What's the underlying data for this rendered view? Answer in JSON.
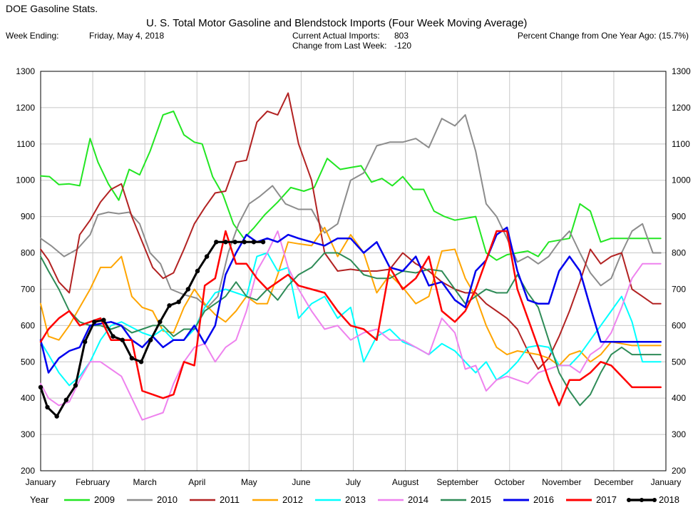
{
  "header": {
    "app_title": "DOE Gasoline Stats.",
    "chart_title": "U. S. Total Motor Gasoline and Blendstock Imports (Four Week Moving Average)",
    "week_ending_label": "Week Ending:",
    "week_ending_value": "Friday, May 4, 2018",
    "current_label": "Current Actual Imports:",
    "current_value": "803",
    "change_label": "Change from Last Week:",
    "change_value": "-120",
    "pct_label": "Percent Change from One Year Ago: (15.7%)"
  },
  "chart_data": {
    "type": "line",
    "title": "U. S. Total Motor Gasoline and Blendstock Imports (Four Week Moving Average)",
    "xlabel": "",
    "ylabel": "",
    "x_unit": "month (0 = start of January, 12 = start of next January)",
    "xlim": [
      0,
      12
    ],
    "ylim": [
      200,
      1300
    ],
    "y_ticks": [
      200,
      300,
      400,
      500,
      600,
      700,
      800,
      900,
      1000,
      1100,
      1200,
      1300
    ],
    "month_labels": [
      "January",
      "February",
      "March",
      "April",
      "May",
      "June",
      "July",
      "August",
      "September",
      "October",
      "November",
      "December",
      "January"
    ],
    "grid": true,
    "legend_title": "Year",
    "legend_position": "bottom",
    "series": [
      {
        "name": "2009",
        "color": "#22e622",
        "width": 2,
        "x": [
          0,
          0.17,
          0.35,
          0.55,
          0.75,
          0.95,
          1.1,
          1.3,
          1.5,
          1.7,
          1.9,
          2.1,
          2.35,
          2.55,
          2.75,
          2.95,
          3.1,
          3.3,
          3.5,
          3.7,
          3.9,
          4.1,
          4.3,
          4.55,
          4.8,
          5.05,
          5.25,
          5.5,
          5.75,
          5.95,
          6.15,
          6.35,
          6.55,
          6.75,
          6.95,
          7.15,
          7.35,
          7.55,
          7.75,
          7.95,
          8.15,
          8.35,
          8.55,
          8.75,
          8.95,
          9.15,
          9.35,
          9.55,
          9.75,
          9.95,
          10.15,
          10.35,
          10.55,
          10.75,
          10.95,
          11.15,
          11.35,
          11.55,
          11.75,
          11.9
        ],
        "y": [
          1012,
          1010,
          988,
          990,
          985,
          1115,
          1050,
          990,
          945,
          1030,
          1015,
          1080,
          1180,
          1190,
          1125,
          1105,
          1100,
          1010,
          960,
          880,
          840,
          870,
          905,
          940,
          980,
          970,
          980,
          1060,
          1030,
          1035,
          1040,
          995,
          1005,
          985,
          1010,
          975,
          975,
          915,
          900,
          890,
          895,
          900,
          800,
          780,
          795,
          800,
          805,
          790,
          830,
          835,
          840,
          935,
          915,
          830,
          840,
          840,
          840,
          840,
          840,
          840
        ]
      },
      {
        "name": "2010",
        "color": "#8c8c8c",
        "width": 2,
        "x": [
          0,
          0.2,
          0.45,
          0.7,
          0.95,
          1.1,
          1.3,
          1.5,
          1.7,
          1.9,
          2.1,
          2.3,
          2.5,
          2.75,
          3,
          3.2,
          3.4,
          3.6,
          3.8,
          4,
          4.2,
          4.45,
          4.7,
          4.95,
          5.2,
          5.45,
          5.7,
          5.95,
          6.2,
          6.45,
          6.7,
          6.95,
          7.2,
          7.45,
          7.7,
          7.95,
          8.15,
          8.35,
          8.55,
          8.75,
          8.95,
          9.15,
          9.35,
          9.55,
          9.75,
          9.95,
          10.15,
          10.35,
          10.55,
          10.75,
          10.95,
          11.15,
          11.35,
          11.55,
          11.75,
          11.9
        ],
        "y": [
          840,
          820,
          790,
          810,
          850,
          905,
          912,
          908,
          912,
          880,
          800,
          770,
          700,
          685,
          675,
          650,
          680,
          800,
          880,
          935,
          955,
          985,
          935,
          920,
          920,
          855,
          880,
          1000,
          1020,
          1095,
          1105,
          1105,
          1115,
          1090,
          1170,
          1150,
          1180,
          1080,
          935,
          900,
          840,
          775,
          790,
          770,
          790,
          830,
          860,
          800,
          745,
          710,
          730,
          800,
          860,
          880,
          800,
          800
        ]
      },
      {
        "name": "2011",
        "color": "#b22222",
        "width": 2,
        "x": [
          0,
          0.15,
          0.35,
          0.55,
          0.75,
          0.95,
          1.15,
          1.35,
          1.55,
          1.75,
          1.95,
          2.15,
          2.35,
          2.55,
          2.75,
          2.95,
          3.15,
          3.35,
          3.55,
          3.75,
          3.95,
          4.15,
          4.35,
          4.55,
          4.75,
          4.95,
          5.2,
          5.45,
          5.7,
          5.95,
          6.2,
          6.45,
          6.7,
          6.95,
          7.2,
          7.45,
          7.7,
          7.95,
          8.15,
          8.35,
          8.55,
          8.75,
          8.95,
          9.15,
          9.35,
          9.55,
          9.75,
          9.95,
          10.15,
          10.35,
          10.55,
          10.75,
          10.95,
          11.15,
          11.35,
          11.55,
          11.75,
          11.9
        ],
        "y": [
          810,
          780,
          720,
          690,
          850,
          890,
          940,
          975,
          990,
          900,
          830,
          760,
          730,
          745,
          810,
          880,
          925,
          965,
          970,
          1050,
          1055,
          1160,
          1190,
          1180,
          1240,
          1100,
          1000,
          800,
          750,
          755,
          750,
          750,
          755,
          800,
          770,
          750,
          720,
          700,
          690,
          690,
          660,
          640,
          620,
          590,
          530,
          480,
          510,
          570,
          640,
          720,
          810,
          770,
          790,
          800,
          700,
          680,
          660,
          660
        ]
      },
      {
        "name": "2012",
        "color": "#ffa500",
        "width": 2,
        "x": [
          0,
          0.15,
          0.35,
          0.55,
          0.75,
          0.95,
          1.15,
          1.35,
          1.55,
          1.75,
          1.95,
          2.15,
          2.35,
          2.55,
          2.75,
          2.95,
          3.15,
          3.35,
          3.55,
          3.75,
          3.95,
          4.15,
          4.35,
          4.55,
          4.75,
          4.95,
          5.2,
          5.45,
          5.7,
          5.95,
          6.2,
          6.45,
          6.7,
          6.95,
          7.2,
          7.45,
          7.7,
          7.95,
          8.15,
          8.35,
          8.55,
          8.75,
          8.95,
          9.15,
          9.35,
          9.55,
          9.75,
          9.95,
          10.15,
          10.35,
          10.55,
          10.75,
          10.95,
          11.15,
          11.35,
          11.55,
          11.75,
          11.9
        ],
        "y": [
          660,
          570,
          560,
          600,
          650,
          700,
          760,
          760,
          790,
          680,
          650,
          640,
          585,
          580,
          650,
          700,
          660,
          630,
          610,
          640,
          680,
          660,
          660,
          740,
          830,
          825,
          820,
          870,
          790,
          850,
          800,
          690,
          740,
          705,
          660,
          680,
          805,
          810,
          730,
          680,
          600,
          540,
          520,
          530,
          525,
          520,
          510,
          490,
          520,
          530,
          500,
          520,
          555,
          550,
          545,
          545,
          545,
          545
        ]
      },
      {
        "name": "2013",
        "color": "#00ffff",
        "width": 2,
        "x": [
          0,
          0.15,
          0.35,
          0.55,
          0.75,
          0.95,
          1.15,
          1.35,
          1.55,
          1.75,
          1.95,
          2.15,
          2.35,
          2.55,
          2.75,
          2.95,
          3.15,
          3.35,
          3.55,
          3.75,
          3.95,
          4.15,
          4.35,
          4.55,
          4.75,
          4.95,
          5.2,
          5.45,
          5.7,
          5.95,
          6.2,
          6.45,
          6.7,
          6.95,
          7.2,
          7.45,
          7.7,
          7.95,
          8.15,
          8.35,
          8.55,
          8.75,
          8.95,
          9.15,
          9.35,
          9.55,
          9.75,
          9.95,
          10.15,
          10.35,
          10.55,
          10.75,
          10.95,
          11.15,
          11.35,
          11.55,
          11.75,
          11.9
        ],
        "y": [
          555,
          520,
          470,
          435,
          460,
          500,
          560,
          600,
          610,
          595,
          580,
          570,
          590,
          560,
          560,
          590,
          650,
          690,
          700,
          690,
          680,
          790,
          800,
          750,
          760,
          620,
          660,
          680,
          620,
          650,
          500,
          570,
          590,
          555,
          540,
          520,
          550,
          530,
          500,
          470,
          500,
          450,
          470,
          500,
          540,
          545,
          540,
          490,
          490,
          520,
          560,
          600,
          640,
          680,
          610,
          500,
          500,
          500
        ]
      },
      {
        "name": "2014",
        "color": "#ee82ee",
        "width": 2,
        "x": [
          0,
          0.15,
          0.35,
          0.55,
          0.75,
          0.95,
          1.15,
          1.35,
          1.55,
          1.75,
          1.95,
          2.15,
          2.35,
          2.55,
          2.75,
          2.95,
          3.15,
          3.35,
          3.55,
          3.75,
          3.95,
          4.15,
          4.35,
          4.55,
          4.75,
          4.95,
          5.2,
          5.45,
          5.7,
          5.95,
          6.2,
          6.45,
          6.7,
          6.95,
          7.2,
          7.45,
          7.7,
          7.95,
          8.15,
          8.35,
          8.55,
          8.75,
          8.95,
          9.15,
          9.35,
          9.55,
          9.75,
          9.95,
          10.15,
          10.35,
          10.55,
          10.75,
          10.95,
          11.15,
          11.35,
          11.55,
          11.75,
          11.9
        ],
        "y": [
          440,
          400,
          380,
          390,
          450,
          500,
          500,
          480,
          460,
          400,
          340,
          350,
          360,
          440,
          500,
          540,
          550,
          500,
          540,
          560,
          640,
          750,
          800,
          860,
          760,
          700,
          640,
          590,
          600,
          560,
          580,
          590,
          560,
          560,
          540,
          520,
          620,
          580,
          480,
          490,
          420,
          450,
          460,
          450,
          440,
          470,
          480,
          490,
          490,
          470,
          520,
          540,
          580,
          650,
          730,
          770,
          770,
          770
        ]
      },
      {
        "name": "2015",
        "color": "#2e8b57",
        "width": 2,
        "x": [
          0,
          0.15,
          0.35,
          0.55,
          0.75,
          0.95,
          1.15,
          1.35,
          1.55,
          1.75,
          1.95,
          2.15,
          2.35,
          2.55,
          2.75,
          2.95,
          3.15,
          3.35,
          3.55,
          3.75,
          3.95,
          4.15,
          4.35,
          4.55,
          4.75,
          4.95,
          5.2,
          5.45,
          5.7,
          5.95,
          6.2,
          6.45,
          6.7,
          6.95,
          7.2,
          7.45,
          7.7,
          7.95,
          8.15,
          8.35,
          8.55,
          8.75,
          8.95,
          9.15,
          9.35,
          9.55,
          9.75,
          9.95,
          10.15,
          10.35,
          10.55,
          10.75,
          10.95,
          11.15,
          11.35,
          11.55,
          11.75,
          11.9
        ],
        "y": [
          790,
          750,
          700,
          640,
          610,
          600,
          600,
          590,
          600,
          580,
          590,
          600,
          600,
          570,
          590,
          590,
          640,
          660,
          680,
          720,
          680,
          670,
          700,
          670,
          710,
          740,
          760,
          800,
          800,
          780,
          740,
          730,
          730,
          750,
          745,
          755,
          750,
          700,
          660,
          680,
          700,
          690,
          690,
          740,
          690,
          650,
          560,
          470,
          420,
          380,
          410,
          470,
          520,
          540,
          520,
          520,
          520,
          520
        ]
      },
      {
        "name": "2016",
        "color": "#0000ee",
        "width": 2.5,
        "x": [
          0,
          0.15,
          0.35,
          0.55,
          0.75,
          0.95,
          1.15,
          1.35,
          1.55,
          1.75,
          1.95,
          2.15,
          2.35,
          2.55,
          2.75,
          2.95,
          3.15,
          3.35,
          3.55,
          3.75,
          3.95,
          4.15,
          4.35,
          4.55,
          4.75,
          4.95,
          5.2,
          5.45,
          5.7,
          5.95,
          6.2,
          6.45,
          6.7,
          6.95,
          7.2,
          7.45,
          7.7,
          7.95,
          8.15,
          8.35,
          8.55,
          8.75,
          8.95,
          9.15,
          9.35,
          9.55,
          9.75,
          9.95,
          10.15,
          10.35,
          10.55,
          10.75,
          10.95,
          11.15,
          11.35,
          11.55,
          11.75,
          11.9
        ],
        "y": [
          560,
          470,
          510,
          530,
          540,
          600,
          605,
          610,
          600,
          560,
          540,
          570,
          540,
          560,
          560,
          600,
          550,
          600,
          740,
          800,
          850,
          830,
          840,
          830,
          850,
          840,
          830,
          820,
          840,
          840,
          800,
          830,
          760,
          750,
          790,
          710,
          720,
          670,
          650,
          750,
          780,
          850,
          870,
          750,
          670,
          660,
          660,
          750,
          790,
          750,
          650,
          555,
          555,
          555,
          555,
          555,
          555,
          555
        ]
      },
      {
        "name": "2017",
        "color": "#ff0000",
        "width": 2.5,
        "x": [
          0,
          0.15,
          0.35,
          0.55,
          0.75,
          0.95,
          1.15,
          1.35,
          1.55,
          1.75,
          1.95,
          2.15,
          2.35,
          2.55,
          2.75,
          2.95,
          3.15,
          3.35,
          3.55,
          3.75,
          3.95,
          4.15,
          4.35,
          4.55,
          4.75,
          4.95,
          5.2,
          5.45,
          5.7,
          5.95,
          6.2,
          6.45,
          6.7,
          6.95,
          7.2,
          7.45,
          7.7,
          7.95,
          8.15,
          8.35,
          8.55,
          8.75,
          8.95,
          9.15,
          9.35,
          9.55,
          9.75,
          9.95,
          10.15,
          10.35,
          10.55,
          10.75,
          10.95,
          11.15,
          11.35,
          11.55,
          11.75,
          11.9
        ],
        "y": [
          555,
          590,
          620,
          640,
          600,
          610,
          620,
          560,
          560,
          560,
          420,
          410,
          400,
          410,
          500,
          490,
          710,
          730,
          860,
          770,
          770,
          730,
          700,
          720,
          740,
          710,
          700,
          690,
          640,
          600,
          590,
          560,
          760,
          700,
          730,
          790,
          640,
          610,
          640,
          700,
          780,
          860,
          860,
          700,
          620,
          540,
          450,
          380,
          450,
          450,
          470,
          500,
          490,
          460,
          430,
          430,
          430,
          430
        ]
      },
      {
        "name": "2018",
        "color": "#000000",
        "width": 3,
        "markers": true,
        "x": [
          0,
          0.13,
          0.31,
          0.49,
          0.67,
          0.85,
          1.03,
          1.21,
          1.39,
          1.57,
          1.75,
          1.93,
          2.11,
          2.29,
          2.47,
          2.65,
          2.83,
          3.01,
          3.19,
          3.37,
          3.55,
          3.73,
          3.91,
          4.09,
          4.27
        ],
        "y": [
          430,
          375,
          350,
          395,
          435,
          555,
          610,
          615,
          570,
          560,
          510,
          500,
          560,
          610,
          655,
          665,
          700,
          750,
          790,
          830,
          830,
          830,
          830,
          830,
          830
        ]
      }
    ]
  }
}
